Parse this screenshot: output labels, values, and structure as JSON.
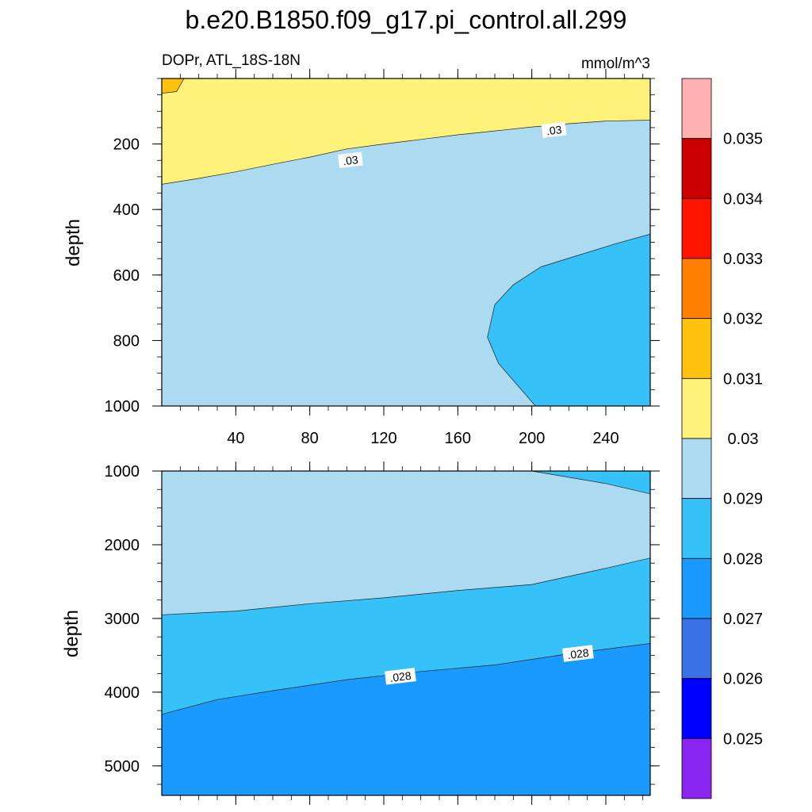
{
  "chart_data": {
    "type": "contour",
    "title": "b.e20.B1850.f09_g17.pi_control.all.299",
    "subtitle_left": "DOPr, ATL_18S-18N",
    "subtitle_right": "mmol/m^3",
    "xlim": [
      0,
      264
    ],
    "x_ticks": [
      "40",
      "80",
      "120",
      "160",
      "200",
      "240"
    ],
    "x_tick_values": [
      40,
      80,
      120,
      160,
      200,
      240
    ],
    "panels": [
      {
        "name": "upper",
        "ylabel": "depth",
        "ylim": [
          0,
          1000
        ],
        "y_ticks": [
          "200",
          "400",
          "600",
          "800",
          "1000"
        ],
        "y_tick_values": [
          200,
          400,
          600,
          800,
          1000
        ],
        "regions": [
          {
            "fill": "0.0285",
            "points": [
              [
                0,
                0
              ],
              [
                264,
                0
              ],
              [
                264,
                1000
              ],
              [
                0,
                1000
              ]
            ]
          },
          {
            "fill": "0.0300",
            "points": [
              [
                0,
                0
              ],
              [
                264,
                0
              ],
              [
                264,
                127
              ],
              [
                240,
                130
              ],
              [
                220,
                138
              ],
              [
                200,
                148
              ],
              [
                180,
                160
              ],
              [
                160,
                172
              ],
              [
                140,
                186
              ],
              [
                120,
                200
              ],
              [
                100,
                215
              ],
              [
                80,
                240
              ],
              [
                60,
                262
              ],
              [
                40,
                285
              ],
              [
                20,
                305
              ],
              [
                0,
                323
              ]
            ]
          },
          {
            "fill": "0.0310",
            "points": [
              [
                0,
                0
              ],
              [
                12,
                0
              ],
              [
                8,
                40
              ],
              [
                0,
                45
              ]
            ]
          },
          {
            "fill": "0.0275",
            "points": [
              [
                264,
                475
              ],
              [
                245,
                505
              ],
              [
                225,
                540
              ],
              [
                205,
                575
              ],
              [
                190,
                630
              ],
              [
                180,
                690
              ],
              [
                176,
                790
              ],
              [
                182,
                870
              ],
              [
                202,
                1000
              ],
              [
                264,
                1000
              ]
            ]
          }
        ],
        "labels": [
          {
            "text": ".03",
            "x": 102,
            "y": 250
          },
          {
            "text": ".03",
            "x": 212,
            "y": 158
          }
        ]
      },
      {
        "name": "lower",
        "ylabel": "depth",
        "ylim": [
          1000,
          5400
        ],
        "y_ticks": [
          "1000",
          "2000",
          "3000",
          "4000",
          "5000"
        ],
        "y_tick_values": [
          1000,
          2000,
          3000,
          4000,
          5000
        ],
        "regions": [
          {
            "fill": "0.0285",
            "points": [
              [
                0,
                1000
              ],
              [
                264,
                1000
              ],
              [
                264,
                5400
              ],
              [
                0,
                5400
              ]
            ]
          },
          {
            "fill": "0.0275",
            "points": [
              [
                0,
                2950
              ],
              [
                40,
                2900
              ],
              [
                80,
                2800
              ],
              [
                120,
                2720
              ],
              [
                160,
                2620
              ],
              [
                200,
                2540
              ],
              [
                240,
                2320
              ],
              [
                264,
                2180
              ],
              [
                264,
                5400
              ],
              [
                0,
                5400
              ]
            ]
          },
          {
            "fill": "0.0265",
            "points": [
              [
                0,
                4300
              ],
              [
                30,
                4100
              ],
              [
                60,
                3980
              ],
              [
                100,
                3830
              ],
              [
                140,
                3720
              ],
              [
                180,
                3630
              ],
              [
                220,
                3480
              ],
              [
                264,
                3340
              ],
              [
                264,
                5400
              ],
              [
                0,
                5400
              ]
            ]
          },
          {
            "fill": "0.0275",
            "points": [
              [
                200,
                1000
              ],
              [
                264,
                1000
              ],
              [
                264,
                1310
              ],
              [
                240,
                1170
              ]
            ]
          }
        ],
        "labels": [
          {
            "text": ".028",
            "x": 129,
            "y": 3790
          },
          {
            "text": ".028",
            "x": 225,
            "y": 3480
          }
        ]
      }
    ],
    "colorbar": {
      "levels": [
        "0.025",
        "0.026",
        "0.027",
        "0.028",
        "0.029",
        "0.03",
        "0.031",
        "0.032",
        "0.033",
        "0.034",
        "0.035"
      ],
      "colors": [
        "#8a24f0",
        "#0000ff",
        "#3a71e6",
        "#1a9aff",
        "#36c2f8",
        "#acdaf0",
        "#fff27a",
        "#ffc20f",
        "#ff7e00",
        "#ff1400",
        "#cc0000",
        "#ffb0b0"
      ],
      "fill_map": {
        "0.0265": "#1a9aff",
        "0.0275": "#36c2f8",
        "0.0285": "#acdaf0",
        "0.0300": "#fff27a",
        "0.0310": "#ffc20f"
      }
    }
  }
}
